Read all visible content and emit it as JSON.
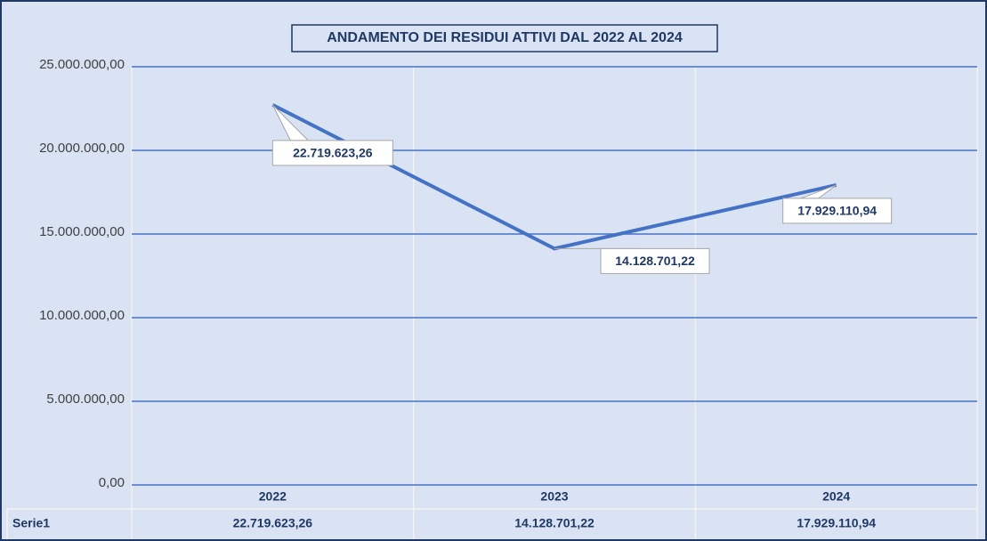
{
  "chart_data": {
    "type": "line",
    "title": "ANDAMENTO DEI RESIDUI ATTIVI DAL 2022 AL 2024",
    "categories": [
      "2022",
      "2023",
      "2024"
    ],
    "series": [
      {
        "name": "Serie1",
        "color": "#4472c4",
        "values": [
          22719623.26,
          14128701.22,
          17929110.94
        ],
        "value_labels": [
          "22.719.623,26",
          "14.128.701,22",
          "17.929.110,94"
        ]
      }
    ],
    "ylim": [
      0,
      25000000
    ],
    "yticks": [
      {
        "value": 0,
        "label": "0,00"
      },
      {
        "value": 5000000,
        "label": "5.000.000,00"
      },
      {
        "value": 10000000,
        "label": "10.000.000,00"
      },
      {
        "value": 15000000,
        "label": "15.000.000,00"
      },
      {
        "value": 20000000,
        "label": "20.000.000,00"
      },
      {
        "value": 25000000,
        "label": "25.000.000,00"
      }
    ],
    "grid": true
  }
}
